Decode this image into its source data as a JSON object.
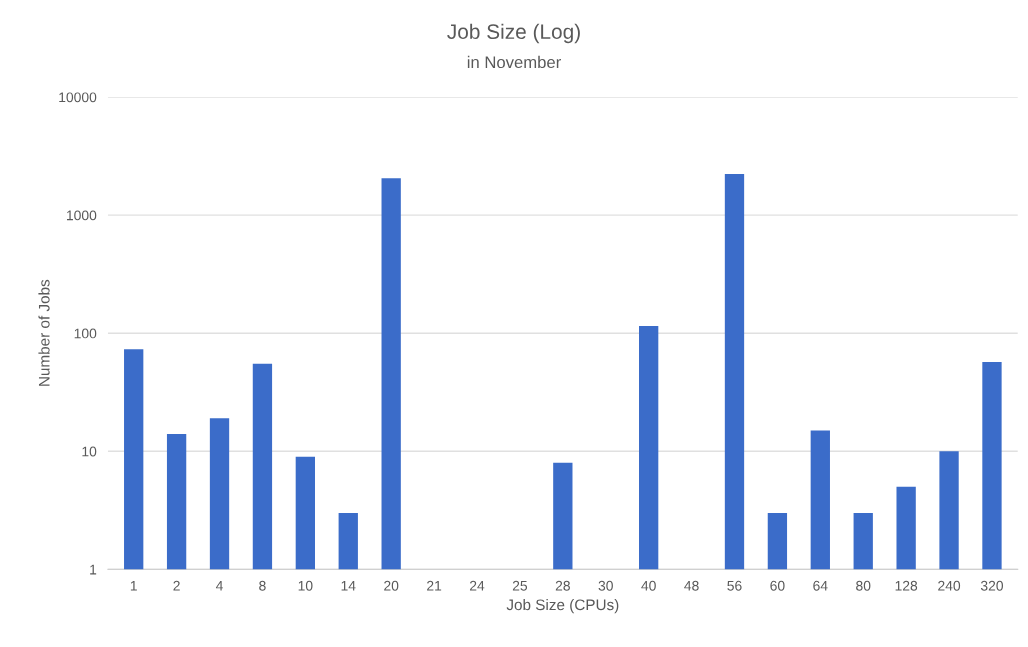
{
  "chart_data": {
    "type": "bar",
    "title": "Job Size (Log)",
    "subtitle": "in November",
    "xlabel": "Job Size (CPUs)",
    "ylabel": "Number of Jobs",
    "categories": [
      "1",
      "2",
      "4",
      "8",
      "10",
      "14",
      "20",
      "21",
      "24",
      "25",
      "28",
      "30",
      "40",
      "48",
      "56",
      "60",
      "64",
      "80",
      "128",
      "240",
      "320"
    ],
    "values": [
      73,
      14,
      19,
      55,
      9,
      3,
      2050,
      null,
      null,
      null,
      8,
      null,
      115,
      null,
      2230,
      3,
      15,
      3,
      5,
      10,
      57
    ],
    "color": "#3b6cc9",
    "log": "y",
    "ylim": [
      1,
      10000
    ],
    "yticks": [
      1,
      10,
      100,
      1000,
      10000
    ],
    "grid": "y",
    "legend": false
  }
}
